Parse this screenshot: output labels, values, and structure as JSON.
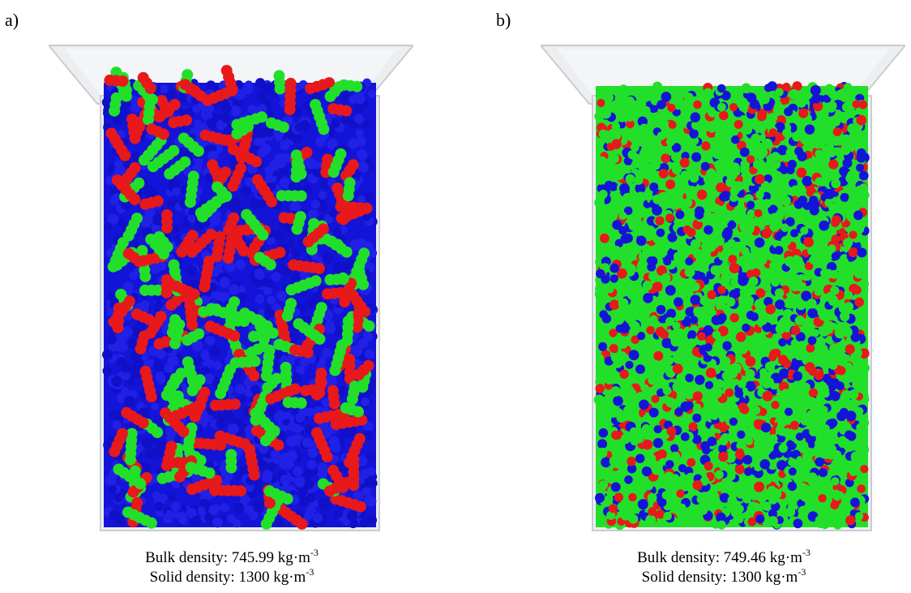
{
  "panels": [
    {
      "label": "a)",
      "bulk_density": {
        "label": "Bulk density:",
        "value": "745.99",
        "unit": "kg·m",
        "exponent": "-3"
      },
      "solid_density": {
        "label": "Solid density:",
        "value": "1300",
        "unit": "kg·m",
        "exponent": "-3"
      },
      "particle_shape": "elongated-clumps",
      "particle_mix": {
        "blue": 0.55,
        "red": 0.25,
        "green": 0.2
      }
    },
    {
      "label": "b)",
      "bulk_density": {
        "label": "Bulk density:",
        "value": "749.46",
        "unit": "kg·m",
        "exponent": "-3"
      },
      "solid_density": {
        "label": "Solid density:",
        "value": "1300",
        "unit": "kg·m",
        "exponent": "-3"
      },
      "particle_shape": "spheres",
      "particle_mix": {
        "green": 0.6,
        "blue": 0.22,
        "red": 0.18
      }
    }
  ],
  "colors": {
    "red": "#e8191a",
    "green": "#22e02a",
    "blue": "#1414d8",
    "silo_fill": "#eceef0",
    "silo_edge": "#c9ccd0"
  }
}
